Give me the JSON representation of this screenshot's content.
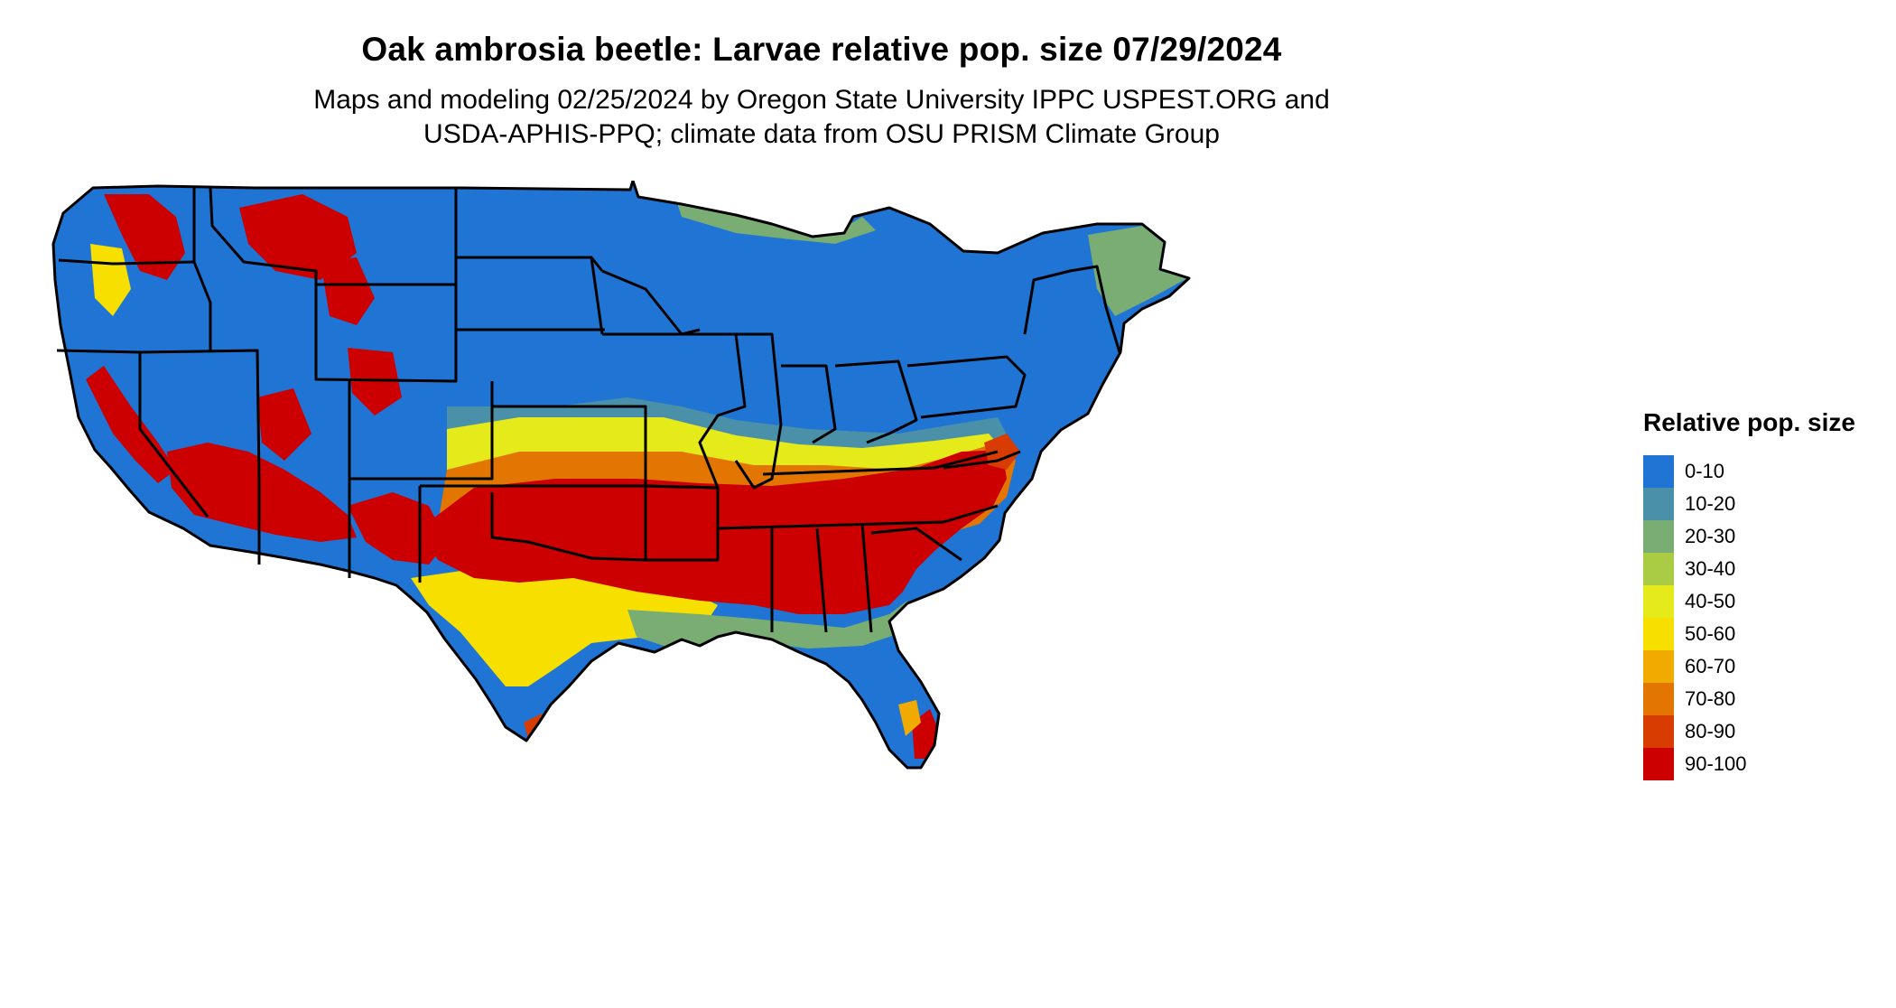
{
  "title": "Oak ambrosia beetle: Larvae relative pop. size 07/29/2024",
  "subtitle_line1": "Maps and modeling 02/25/2024 by Oregon State University IPPC USPEST.ORG and",
  "subtitle_line2": "USDA-APHIS-PPQ; climate data from OSU PRISM Climate Group",
  "legend": {
    "title": "Relative pop. size",
    "items": [
      {
        "label": "0-10",
        "color": "#1f74d4"
      },
      {
        "label": "10-20",
        "color": "#4a90a8"
      },
      {
        "label": "20-30",
        "color": "#79ad73"
      },
      {
        "label": "30-40",
        "color": "#a9cc44"
      },
      {
        "label": "40-50",
        "color": "#e5ea1b"
      },
      {
        "label": "50-60",
        "color": "#f7df00"
      },
      {
        "label": "60-70",
        "color": "#f0aa00"
      },
      {
        "label": "70-80",
        "color": "#e37600"
      },
      {
        "label": "80-90",
        "color": "#d83c00"
      },
      {
        "label": "90-100",
        "color": "#cc0000"
      }
    ]
  },
  "map": {
    "region": "contiguous-united-states",
    "state_border_color": "#000000",
    "pattern": "Highest relative larval population (90-100) across the southern states from Texas and Oklahoma through Arkansas, Tennessee, the Gulf states to the Carolinas and Virginia, plus southern California, Arizona and high western mountains; lowest (0-10) across the northern plains, upper Midwest, Great Lakes, Northeast, most of the Pacific Northwest and Great Basin, south Texas coast and northern Florida; transitional 10-80 bands in Kansas, Missouri, Kentucky, southern Illinois/Indiana and the Texas interior."
  }
}
